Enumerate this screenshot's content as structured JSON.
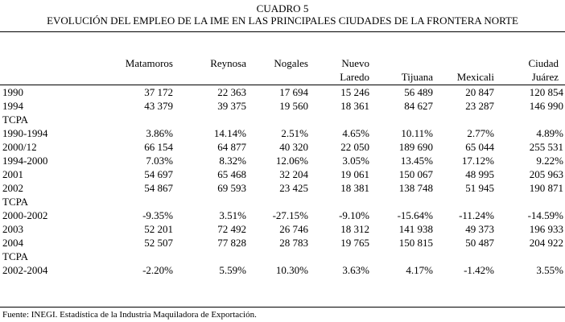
{
  "title": {
    "line1": "CUADRO 5",
    "line2": "EVOLUCIÓN DEL EMPLEO DE LA IME EN LAS PRINCIPALES CIUDADES DE LA FRONTERA NORTE"
  },
  "columns": [
    {
      "line1": "",
      "line2": "Matamoros"
    },
    {
      "line1": "",
      "line2": "Reynosa"
    },
    {
      "line1": "",
      "line2": "Nogales"
    },
    {
      "line1": "Nuevo",
      "line2": "Laredo"
    },
    {
      "line1": "",
      "line2": "Tijuana"
    },
    {
      "line1": "",
      "line2": "Mexicali"
    },
    {
      "line1": "Ciudad",
      "line2": "Juárez"
    }
  ],
  "rows": [
    {
      "label": "1990",
      "values": [
        "37 172",
        "22 363",
        "17 694",
        "15 246",
        "56 489",
        "20 847",
        "120 854"
      ]
    },
    {
      "label": "1994",
      "values": [
        "43 379",
        "39 375",
        "19 560",
        "18 361",
        "84 627",
        "23 287",
        "146 990"
      ]
    },
    {
      "label": "TCPA",
      "values": [
        "",
        "",
        "",
        "",
        "",
        "",
        ""
      ]
    },
    {
      "label": "1990-1994",
      "values": [
        "3.86%",
        "14.14%",
        "2.51%",
        "4.65%",
        "10.11%",
        "2.77%",
        "4.89%"
      ]
    },
    {
      "label": "2000/12",
      "values": [
        "66 154",
        "64 877",
        "40 320",
        "22 050",
        "189 690",
        "65 044",
        "255 531"
      ]
    },
    {
      "label": "1994-2000",
      "values": [
        "7.03%",
        "8.32%",
        "12.06%",
        "3.05%",
        "13.45%",
        "17.12%",
        "9.22%"
      ]
    },
    {
      "label": "2001",
      "values": [
        "54 697",
        "65 468",
        "32 204",
        "19 061",
        "150 067",
        "48 995",
        "205 963"
      ]
    },
    {
      "label": "2002",
      "values": [
        "54 867",
        "69 593",
        "23 425",
        "18 381",
        "138 748",
        "51 945",
        "190 871"
      ]
    },
    {
      "label": "TCPA",
      "values": [
        "",
        "",
        "",
        "",
        "",
        "",
        ""
      ]
    },
    {
      "label": "2000-2002",
      "values": [
        "-9.35%",
        "3.51%",
        "-27.15%",
        "-9.10%",
        "-15.64%",
        "-11.24%",
        "-14.59%"
      ]
    },
    {
      "label": "2003",
      "values": [
        "52 201",
        "72 492",
        "26 746",
        "18 312",
        "141 938",
        "49 373",
        "196 933"
      ]
    },
    {
      "label": "2004",
      "values": [
        "52 507",
        "77 828",
        "28 783",
        "19 765",
        "150 815",
        "50 487",
        "204 922"
      ]
    },
    {
      "label": "TCPA",
      "values": [
        "",
        "",
        "",
        "",
        "",
        "",
        ""
      ]
    },
    {
      "label": "2002-2004",
      "values": [
        "-2.20%",
        "5.59%",
        "10.30%",
        "3.63%",
        "4.17%",
        "-1.42%",
        "3.55%"
      ]
    }
  ],
  "source": "Fuente: INEGI. Estadística de la Industria Maquiladora de Exportación."
}
